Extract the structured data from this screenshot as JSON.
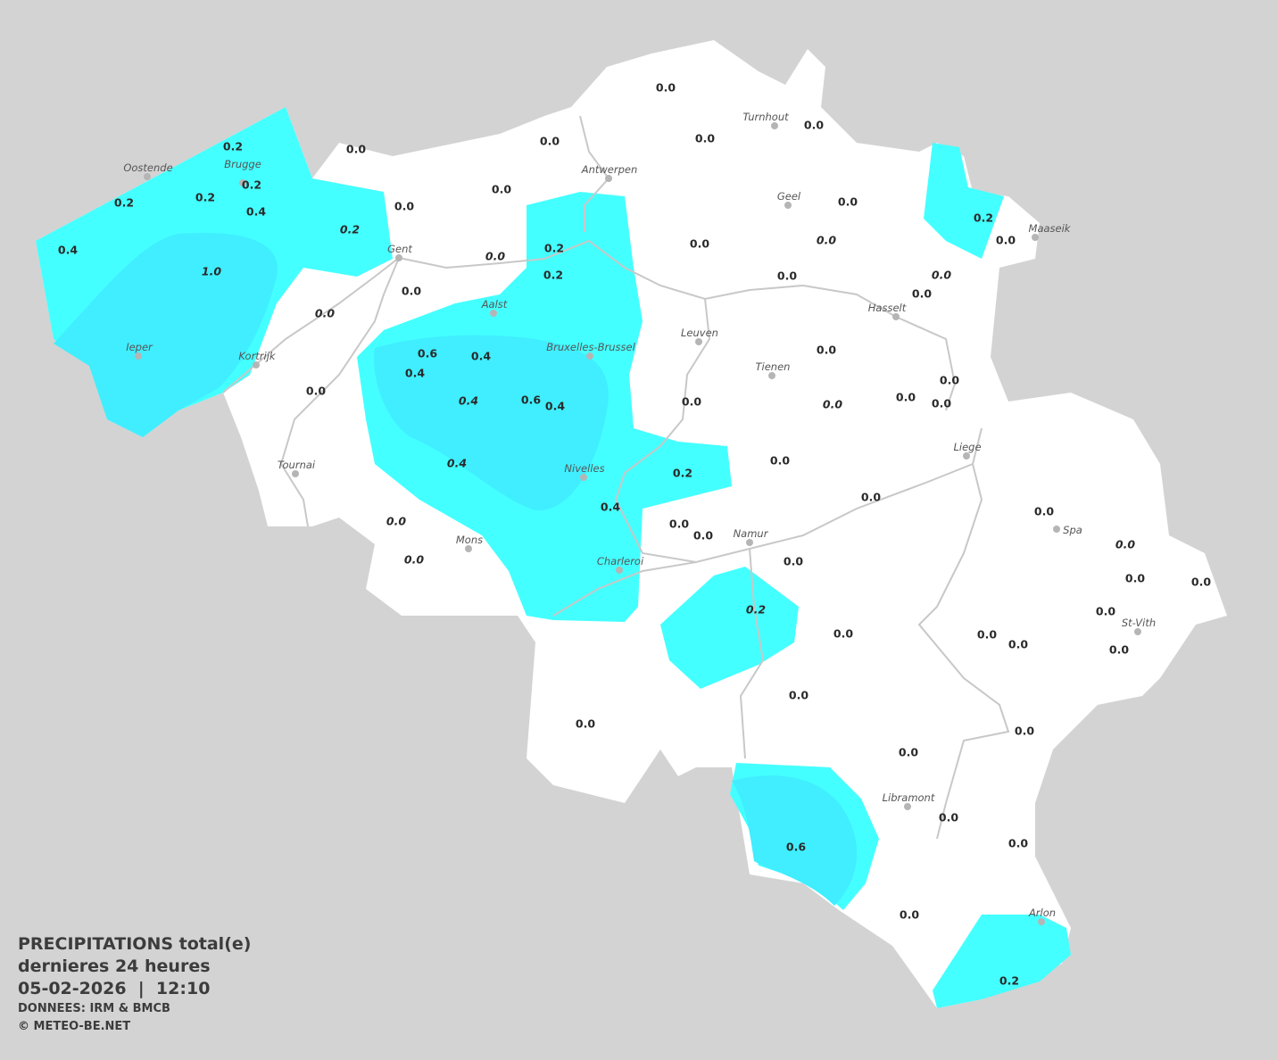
{
  "legend": {
    "title": "PRECIPITATIONS total(e)",
    "period": "dernieres 24 heures",
    "datetime": "05-02-2026  |  12:10",
    "source": "DONNEES: IRM & BMCB",
    "copyright": "© METEO-BE.NET"
  },
  "colors": {
    "background": "#d3d3d3",
    "land": "#ffffff",
    "precip_0_2": "#44ffff",
    "precip_0_6": "#40eeff",
    "borders": "#c8c8c8"
  },
  "unit": "mm",
  "cities": [
    "Turnhout",
    "Antwerpen",
    "Oostende",
    "Brugge",
    "Geel",
    "Maaseik",
    "Gent",
    "Hasselt",
    "Aalst",
    "Leuven",
    "Bruxelles-Brussel",
    "Ieper",
    "Kortrijk",
    "Tienen",
    "Liege",
    "Tournai",
    "Nivelles",
    "Spa",
    "Namur",
    "Mons",
    "Charleroi",
    "St-Vith",
    "Libramont",
    "Arlon"
  ],
  "stations": [
    {
      "v": "0.0"
    },
    {
      "v": "0.0"
    },
    {
      "v": "0.0"
    },
    {
      "v": "0.0"
    },
    {
      "v": "0.0"
    },
    {
      "v": "0.2"
    },
    {
      "v": "0.2"
    },
    {
      "v": "0.2"
    },
    {
      "v": "0.2"
    },
    {
      "v": "0.4"
    },
    {
      "v": "0.2",
      "italic": true
    },
    {
      "v": "0.4"
    },
    {
      "v": "1.0",
      "italic": true
    },
    {
      "v": "0.0"
    },
    {
      "v": "0.0"
    },
    {
      "v": "0.0"
    },
    {
      "v": "0.2"
    },
    {
      "v": "0.0"
    },
    {
      "v": "0.0"
    },
    {
      "v": "0.0",
      "italic": true
    },
    {
      "v": "0.2"
    },
    {
      "v": "0.0",
      "italic": true
    },
    {
      "v": "0.2"
    },
    {
      "v": "0.0"
    },
    {
      "v": "0.0",
      "italic": true
    },
    {
      "v": "0.0"
    },
    {
      "v": "0.0"
    },
    {
      "v": "0.0",
      "italic": true
    },
    {
      "v": "0.6"
    },
    {
      "v": "0.4"
    },
    {
      "v": "0.4"
    },
    {
      "v": "0.0"
    },
    {
      "v": "0.0"
    },
    {
      "v": "0.4",
      "italic": true
    },
    {
      "v": "0.6"
    },
    {
      "v": "0.4"
    },
    {
      "v": "0.0"
    },
    {
      "v": "0.0",
      "italic": true
    },
    {
      "v": "0.0"
    },
    {
      "v": "0.0"
    },
    {
      "v": "0.0"
    },
    {
      "v": "0.4",
      "italic": true
    },
    {
      "v": "0.2"
    },
    {
      "v": "0.0"
    },
    {
      "v": "0.4"
    },
    {
      "v": "0.0"
    },
    {
      "v": "0.0",
      "italic": true
    },
    {
      "v": "0.0",
      "italic": true
    },
    {
      "v": "0.0"
    },
    {
      "v": "0.0"
    },
    {
      "v": "0.0"
    },
    {
      "v": "0.0"
    },
    {
      "v": "0.0",
      "italic": true
    },
    {
      "v": "0.0"
    },
    {
      "v": "0.0"
    },
    {
      "v": "0.2",
      "italic": true
    },
    {
      "v": "0.0"
    },
    {
      "v": "0.0"
    },
    {
      "v": "0.0"
    },
    {
      "v": "0.0"
    },
    {
      "v": "0.0"
    },
    {
      "v": "0.0"
    },
    {
      "v": "0.0"
    },
    {
      "v": "0.0"
    },
    {
      "v": "0.0"
    },
    {
      "v": "0.0"
    },
    {
      "v": "0.6"
    },
    {
      "v": "0.0"
    },
    {
      "v": "0.0"
    },
    {
      "v": "0.2"
    }
  ]
}
